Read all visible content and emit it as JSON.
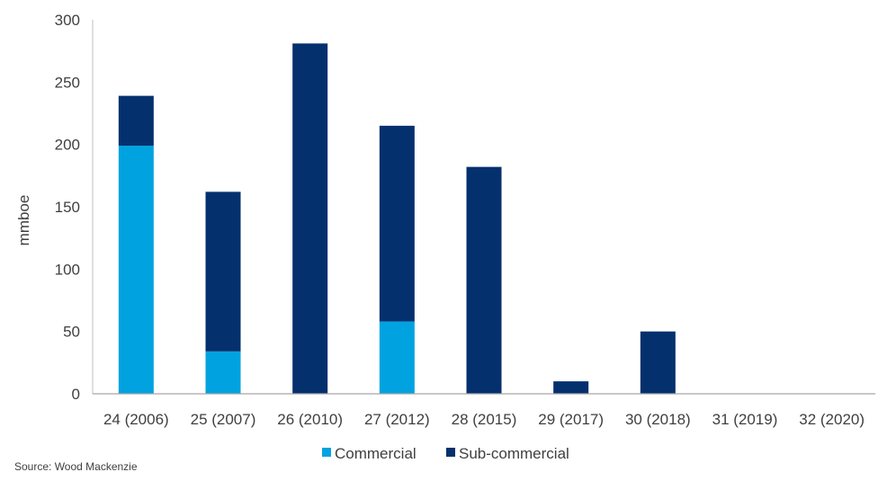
{
  "chart_data": {
    "type": "bar",
    "stacked": true,
    "categories": [
      "24 (2006)",
      "25 (2007)",
      "26 (2010)",
      "27 (2012)",
      "28 (2015)",
      "29 (2017)",
      "30 (2018)",
      "31 (2019)",
      "32 (2020)"
    ],
    "series": [
      {
        "name": "Commercial",
        "color": "#00A3E0",
        "values": [
          199,
          34,
          0,
          58,
          0,
          0,
          0,
          0,
          0
        ]
      },
      {
        "name": "Sub-commercial",
        "color": "#05306E",
        "values": [
          40,
          128,
          281,
          157,
          182,
          10,
          50,
          0,
          0
        ]
      }
    ],
    "ylabel": "mmboe",
    "ylim": [
      0,
      300
    ],
    "yticks": [
      0,
      50,
      100,
      150,
      200,
      250,
      300
    ],
    "grid": false,
    "legend_position": "bottom"
  },
  "source": "Source: Wood Mackenzie"
}
